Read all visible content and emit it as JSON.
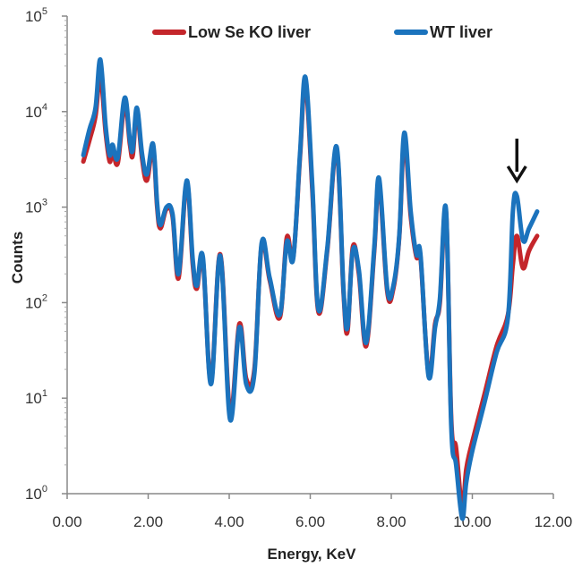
{
  "chart_data": {
    "type": "line",
    "xlabel": "Energy, KeV",
    "ylabel": "Counts",
    "xlim": [
      0,
      12
    ],
    "ylim": [
      1,
      100000
    ],
    "y_scale": "log",
    "grid": false,
    "legend_position": "top",
    "x_ticks": [
      "0.00",
      "2.00",
      "4.00",
      "6.00",
      "8.00",
      "10.00",
      "12.00"
    ],
    "y_ticks": [
      {
        "base": "10",
        "exp": "0"
      },
      {
        "base": "10",
        "exp": "1"
      },
      {
        "base": "10",
        "exp": "2"
      },
      {
        "base": "10",
        "exp": "3"
      },
      {
        "base": "10",
        "exp": "4"
      },
      {
        "base": "10",
        "exp": "5"
      }
    ],
    "annotation": {
      "type": "arrow",
      "x": 11.1,
      "note": "down arrow over Se peak"
    },
    "series": [
      {
        "name": "Low Se KO liver",
        "color": "#c4262b",
        "points": [
          [
            0.4,
            3000
          ],
          [
            0.55,
            5000
          ],
          [
            0.7,
            9000
          ],
          [
            0.82,
            24000
          ],
          [
            0.95,
            6000
          ],
          [
            1.05,
            3000
          ],
          [
            1.12,
            4000
          ],
          [
            1.25,
            2900
          ],
          [
            1.42,
            12000
          ],
          [
            1.55,
            4500
          ],
          [
            1.62,
            3500
          ],
          [
            1.72,
            10000
          ],
          [
            1.85,
            3200
          ],
          [
            1.97,
            1900
          ],
          [
            2.12,
            4200
          ],
          [
            2.22,
            1000
          ],
          [
            2.3,
            600
          ],
          [
            2.45,
            950
          ],
          [
            2.6,
            800
          ],
          [
            2.75,
            180
          ],
          [
            2.95,
            1800
          ],
          [
            3.1,
            250
          ],
          [
            3.2,
            140
          ],
          [
            3.35,
            280
          ],
          [
            3.55,
            15
          ],
          [
            3.78,
            320
          ],
          [
            4.02,
            7
          ],
          [
            4.25,
            60
          ],
          [
            4.42,
            16
          ],
          [
            4.62,
            20
          ],
          [
            4.8,
            400
          ],
          [
            5.0,
            170
          ],
          [
            5.25,
            70
          ],
          [
            5.42,
            480
          ],
          [
            5.58,
            300
          ],
          [
            5.75,
            3500
          ],
          [
            5.88,
            20000
          ],
          [
            6.05,
            1500
          ],
          [
            6.2,
            80
          ],
          [
            6.42,
            350
          ],
          [
            6.65,
            4000
          ],
          [
            6.82,
            130
          ],
          [
            6.92,
            50
          ],
          [
            7.05,
            380
          ],
          [
            7.2,
            200
          ],
          [
            7.38,
            35
          ],
          [
            7.58,
            350
          ],
          [
            7.7,
            1800
          ],
          [
            7.9,
            130
          ],
          [
            8.05,
            140
          ],
          [
            8.2,
            500
          ],
          [
            8.32,
            5000
          ],
          [
            8.48,
            800
          ],
          [
            8.62,
            300
          ],
          [
            8.72,
            300
          ],
          [
            8.92,
            18
          ],
          [
            9.08,
            60
          ],
          [
            9.2,
            100
          ],
          [
            9.35,
            900
          ],
          [
            9.48,
            6
          ],
          [
            9.6,
            3
          ],
          [
            9.75,
            0.7
          ],
          [
            9.85,
            1.8
          ],
          [
            10.0,
            3.5
          ],
          [
            10.3,
            11
          ],
          [
            10.6,
            35
          ],
          [
            10.88,
            75
          ],
          [
            11.0,
            250
          ],
          [
            11.1,
            500
          ],
          [
            11.25,
            230
          ],
          [
            11.4,
            350
          ],
          [
            11.6,
            500
          ]
        ]
      },
      {
        "name": "WT liver",
        "color": "#1b73bd",
        "points": [
          [
            0.4,
            3500
          ],
          [
            0.55,
            6500
          ],
          [
            0.7,
            11000
          ],
          [
            0.82,
            35000
          ],
          [
            0.95,
            7000
          ],
          [
            1.05,
            3500
          ],
          [
            1.12,
            4500
          ],
          [
            1.25,
            3300
          ],
          [
            1.42,
            14000
          ],
          [
            1.55,
            5000
          ],
          [
            1.62,
            4000
          ],
          [
            1.72,
            11000
          ],
          [
            1.85,
            3600
          ],
          [
            1.97,
            2200
          ],
          [
            2.12,
            4600
          ],
          [
            2.22,
            1100
          ],
          [
            2.3,
            650
          ],
          [
            2.45,
            1000
          ],
          [
            2.6,
            850
          ],
          [
            2.75,
            200
          ],
          [
            2.95,
            1900
          ],
          [
            3.1,
            280
          ],
          [
            3.2,
            150
          ],
          [
            3.35,
            300
          ],
          [
            3.55,
            14
          ],
          [
            3.78,
            310
          ],
          [
            4.02,
            6
          ],
          [
            4.25,
            55
          ],
          [
            4.42,
            14
          ],
          [
            4.62,
            18
          ],
          [
            4.8,
            420
          ],
          [
            5.0,
            180
          ],
          [
            5.25,
            75
          ],
          [
            5.42,
            430
          ],
          [
            5.58,
            290
          ],
          [
            5.75,
            3800
          ],
          [
            5.88,
            23000
          ],
          [
            6.05,
            1700
          ],
          [
            6.2,
            85
          ],
          [
            6.42,
            370
          ],
          [
            6.65,
            4300
          ],
          [
            6.82,
            140
          ],
          [
            6.92,
            55
          ],
          [
            7.05,
            350
          ],
          [
            7.2,
            220
          ],
          [
            7.38,
            38
          ],
          [
            7.58,
            380
          ],
          [
            7.7,
            2000
          ],
          [
            7.9,
            140
          ],
          [
            8.05,
            150
          ],
          [
            8.2,
            520
          ],
          [
            8.32,
            6000
          ],
          [
            8.48,
            900
          ],
          [
            8.62,
            320
          ],
          [
            8.72,
            320
          ],
          [
            8.92,
            17
          ],
          [
            9.08,
            55
          ],
          [
            9.2,
            110
          ],
          [
            9.35,
            950
          ],
          [
            9.48,
            5
          ],
          [
            9.6,
            2
          ],
          [
            9.75,
            0.55
          ],
          [
            9.85,
            1.3
          ],
          [
            10.0,
            2.8
          ],
          [
            10.3,
            9
          ],
          [
            10.6,
            30
          ],
          [
            10.88,
            70
          ],
          [
            11.0,
            900
          ],
          [
            11.1,
            1300
          ],
          [
            11.25,
            450
          ],
          [
            11.4,
            600
          ],
          [
            11.6,
            900
          ]
        ]
      }
    ]
  }
}
